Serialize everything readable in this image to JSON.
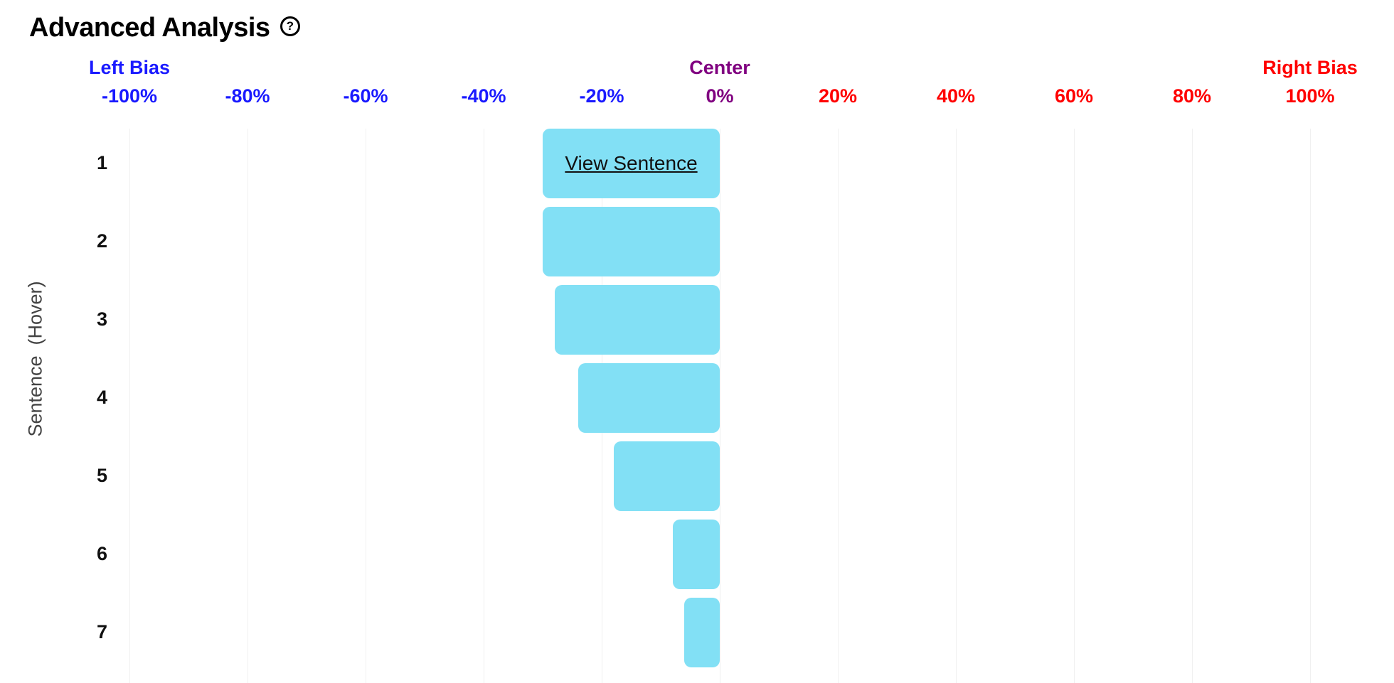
{
  "title": "Advanced Analysis",
  "help_icon": "?",
  "chart_data": {
    "type": "bar",
    "orientation": "horizontal",
    "title": "Advanced Analysis",
    "xlabel": "",
    "ylabel": "Sentence  (Hover)",
    "xlim": [
      -100,
      100
    ],
    "x_ticks": [
      {
        "label": "-100%",
        "value": -100,
        "color": "#1a1aff"
      },
      {
        "label": "-80%",
        "value": -80,
        "color": "#1a1aff"
      },
      {
        "label": "-60%",
        "value": -60,
        "color": "#1a1aff"
      },
      {
        "label": "-40%",
        "value": -40,
        "color": "#1a1aff"
      },
      {
        "label": "-20%",
        "value": -20,
        "color": "#1a1aff"
      },
      {
        "label": "0%",
        "value": 0,
        "color": "#800080"
      },
      {
        "label": "20%",
        "value": 20,
        "color": "#ff0000"
      },
      {
        "label": "40%",
        "value": 40,
        "color": "#ff0000"
      },
      {
        "label": "60%",
        "value": 60,
        "color": "#ff0000"
      },
      {
        "label": "80%",
        "value": 80,
        "color": "#ff0000"
      },
      {
        "label": "100%",
        "value": 100,
        "color": "#ff0000"
      }
    ],
    "region_labels": [
      {
        "label": "Left Bias",
        "value": -100,
        "color": "#1a1aff"
      },
      {
        "label": "Center",
        "value": 0,
        "color": "#800080"
      },
      {
        "label": "Right Bias",
        "value": 100,
        "color": "#ff0000"
      }
    ],
    "categories": [
      "1",
      "2",
      "3",
      "4",
      "5",
      "6",
      "7"
    ],
    "values": [
      -30,
      -30,
      -28,
      -24,
      -18,
      -8,
      -6
    ],
    "bar_color": "#82e0f5",
    "hover_label": "View Sentence",
    "hover_index": 0,
    "grid": true
  }
}
